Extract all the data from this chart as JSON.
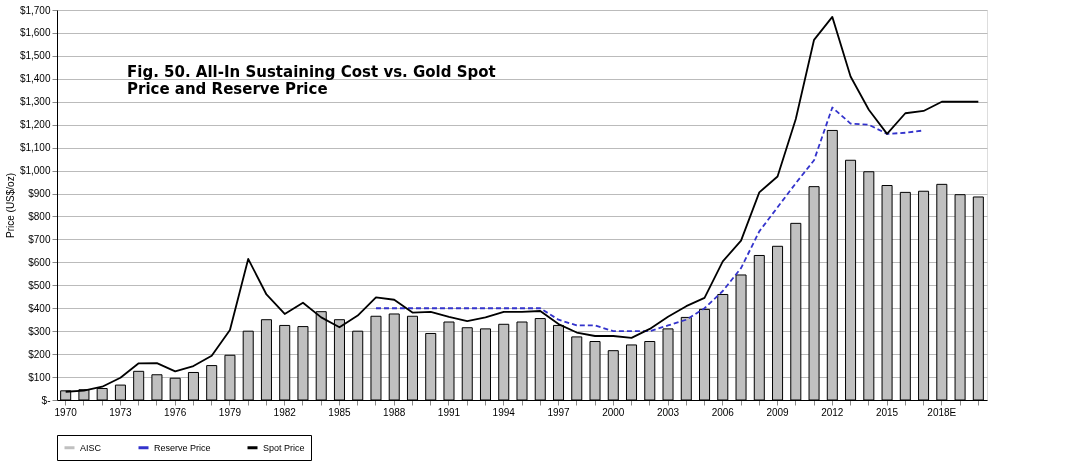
{
  "chart_data": {
    "type": "bar",
    "title": "Fig. 50. All-In Sustaining Cost vs. Gold Spot Price and Reserve Price",
    "ylabel": "Price (US$/oz)",
    "categories": [
      "1970",
      null,
      null,
      "1973",
      null,
      null,
      "1976",
      null,
      null,
      "1979",
      null,
      null,
      "1982",
      null,
      null,
      "1985",
      null,
      null,
      "1988",
      null,
      null,
      "1991",
      null,
      null,
      "1994",
      null,
      null,
      "1997",
      null,
      null,
      "2000",
      null,
      null,
      "2003",
      null,
      null,
      "2006",
      null,
      null,
      "2009",
      null,
      null,
      "2012",
      null,
      null,
      "2015",
      null,
      null,
      "2018E",
      null,
      null
    ],
    "series": [
      {
        "name": "AISC",
        "color": "#c0c0c0",
        "values": [
          40,
          45,
          50,
          65,
          125,
          110,
          95,
          120,
          150,
          195,
          300,
          350,
          325,
          320,
          385,
          350,
          300,
          365,
          375,
          365,
          290,
          340,
          315,
          310,
          330,
          340,
          355,
          325,
          275,
          255,
          215,
          240,
          255,
          310,
          360,
          395,
          460,
          545,
          630,
          670,
          770,
          930,
          1175,
          1045,
          995,
          935,
          905,
          910,
          940,
          895,
          885
        ]
      },
      {
        "name": "Reserve Price",
        "type": "line",
        "line_style": "dashed",
        "color": "#3333cc",
        "values": [
          null,
          null,
          null,
          null,
          null,
          null,
          null,
          null,
          null,
          null,
          null,
          null,
          null,
          null,
          null,
          null,
          null,
          400,
          400,
          400,
          400,
          400,
          400,
          400,
          400,
          400,
          400,
          350,
          325,
          325,
          300,
          300,
          300,
          325,
          350,
          400,
          475,
          575,
          735,
          840,
          945,
          1045,
          1275,
          1205,
          1200,
          1160,
          1165,
          1175,
          null,
          null,
          null
        ]
      },
      {
        "name": "Spot Price",
        "type": "line",
        "line_style": "solid",
        "color": "#000000",
        "values": [
          36,
          41,
          58,
          97,
          160,
          161,
          125,
          148,
          193,
          305,
          615,
          460,
          375,
          424,
          360,
          317,
          368,
          447,
          437,
          381,
          384,
          362,
          344,
          360,
          384,
          384,
          388,
          331,
          294,
          279,
          279,
          271,
          310,
          363,
          409,
          445,
          604,
          695,
          905,
          974,
          1225,
          1570,
          1670,
          1410,
          1265,
          1160,
          1250,
          1260,
          1300,
          1300,
          1300
        ]
      }
    ],
    "ylim": [
      0,
      1700
    ],
    "yticks": [
      {
        "value": 0,
        "label": "$-"
      },
      {
        "value": 100,
        "label": "$100"
      },
      {
        "value": 200,
        "label": "$200"
      },
      {
        "value": 300,
        "label": "$300"
      },
      {
        "value": 400,
        "label": "$400"
      },
      {
        "value": 500,
        "label": "$500"
      },
      {
        "value": 600,
        "label": "$600"
      },
      {
        "value": 700,
        "label": "$700"
      },
      {
        "value": 800,
        "label": "$800"
      },
      {
        "value": 900,
        "label": "$900"
      },
      {
        "value": 1000,
        "label": "$1,000"
      },
      {
        "value": 1100,
        "label": "$1,100"
      },
      {
        "value": 1200,
        "label": "$1,200"
      },
      {
        "value": 1300,
        "label": "$1,300"
      },
      {
        "value": 1400,
        "label": "$1,400"
      },
      {
        "value": 1500,
        "label": "$1,500"
      },
      {
        "value": 1600,
        "label": "$1,600"
      },
      {
        "value": 1700,
        "label": "$1,700"
      }
    ],
    "grid": "y",
    "legend": "bottom"
  }
}
